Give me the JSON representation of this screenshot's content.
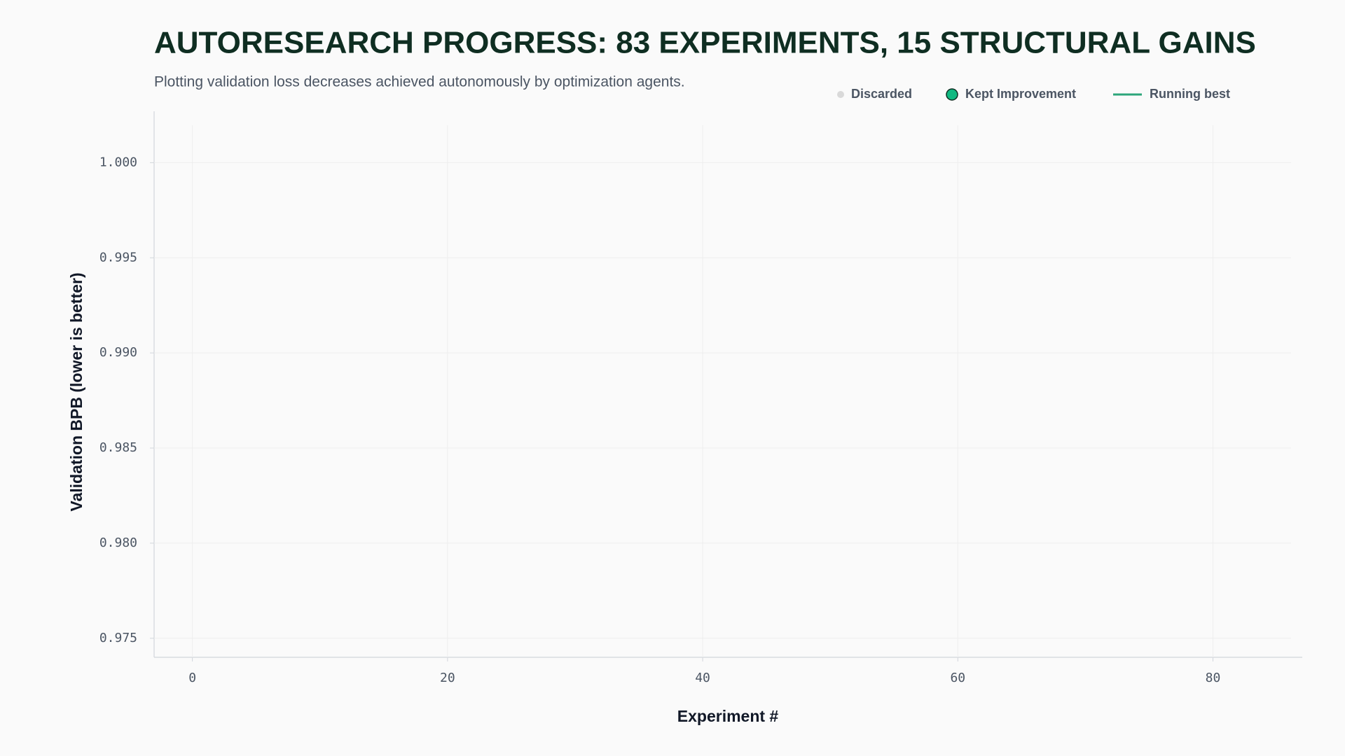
{
  "chart_data": {
    "type": "scatter",
    "title": "AUTORESEARCH PROGRESS: 83 EXPERIMENTS, 15 STRUCTURAL GAINS",
    "subtitle": "Plotting validation loss decreases achieved autonomously by optimization agents.",
    "x_label": "Experiment #",
    "y_label": "Validation BPB (lower is better)",
    "x": [],
    "series": [
      {
        "name": "Discarded",
        "color": "#d9d9d9",
        "marker": "dot",
        "values": []
      },
      {
        "name": "Kept Improvement",
        "color": "#10b981",
        "marker": "circle",
        "values": []
      },
      {
        "name": "Running best",
        "color": "#2ca57a",
        "marker": "line",
        "values": []
      }
    ],
    "xlim": [
      -3,
      87
    ],
    "ylim": [
      0.974,
      1.0027
    ],
    "xticks": [
      0,
      20,
      40,
      60,
      80
    ],
    "yticks": [
      {
        "value": 1,
        "label": "1.000"
      },
      0.995,
      {
        "value": 0.99,
        "label": "0.990"
      },
      0.985,
      {
        "value": 0.98,
        "label": "0.980"
      },
      0.975
    ],
    "grid": true
  }
}
